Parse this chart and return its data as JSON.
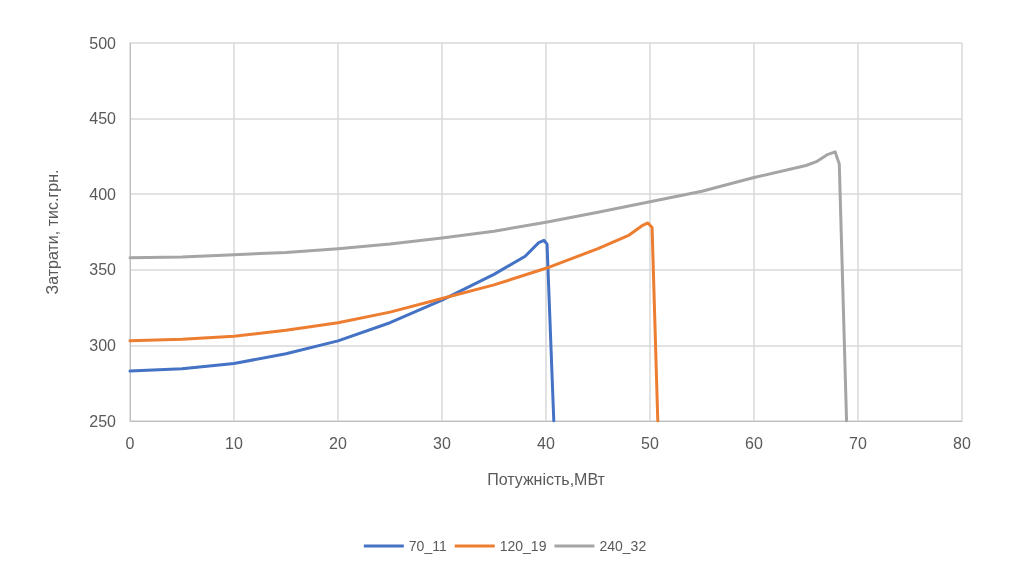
{
  "chart_data": {
    "type": "line",
    "xlabel": "Потужність,МВт",
    "ylabel": "Затрати, тис.грн.",
    "xlim": [
      0,
      80
    ],
    "xticks": [
      0,
      10,
      20,
      30,
      40,
      50,
      60,
      70,
      80
    ],
    "ylim": [
      250,
      500
    ],
    "yticks": [
      250,
      300,
      350,
      400,
      450,
      500
    ],
    "grid": true,
    "legend": "bottom",
    "marker": "none",
    "line_style": "solid",
    "series": [
      {
        "name": "70_11",
        "color": "#4472c4",
        "x": [
          0,
          5,
          10,
          15,
          20,
          25,
          30,
          35,
          38,
          39.3,
          39.8,
          40.1,
          40.75
        ],
        "values": [
          283,
          284.5,
          288,
          294.5,
          303,
          315,
          330,
          347,
          359,
          368,
          369.5,
          367,
          250
        ]
      },
      {
        "name": "120_19",
        "color": "#ed7d31",
        "x": [
          0,
          5,
          10,
          15,
          20,
          25,
          30,
          35,
          40,
          45,
          48,
          49.2,
          49.8,
          50.2,
          50.75
        ],
        "values": [
          303,
          304,
          306,
          310,
          315,
          322,
          331,
          340,
          351,
          364,
          373,
          379,
          381,
          378,
          250
        ]
      },
      {
        "name": "240_32",
        "color": "#a5a5a5",
        "x": [
          0,
          5,
          10,
          15,
          20,
          25,
          30,
          35,
          40,
          45,
          50,
          55,
          60,
          65,
          66,
          67,
          67.8,
          68.2,
          68.9
        ],
        "values": [
          358,
          358.5,
          360,
          361.5,
          364,
          367,
          371,
          375.5,
          381.5,
          388,
          395,
          402,
          411,
          419,
          421.5,
          426,
          428,
          420,
          250
        ]
      }
    ]
  }
}
